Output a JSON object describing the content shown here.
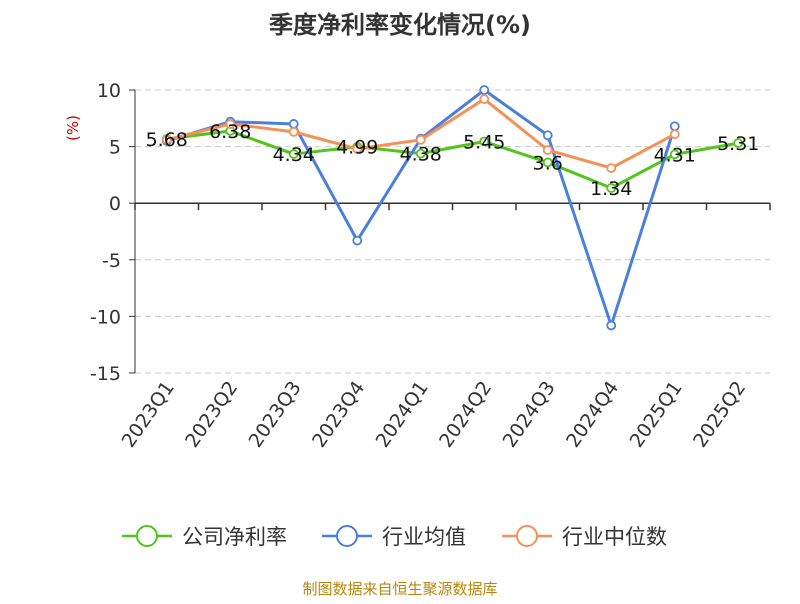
{
  "chart_data": {
    "type": "line",
    "title": "季度净利率变化情况(%)",
    "ylabel": "(%)",
    "xlabel": "",
    "categories": [
      "2023Q1",
      "2023Q2",
      "2023Q3",
      "2023Q4",
      "2024Q1",
      "2024Q2",
      "2024Q3",
      "2024Q4",
      "2025Q1",
      "2025Q2"
    ],
    "ylim": [
      -15,
      10
    ],
    "yticks": [
      "10",
      "5",
      "0",
      "-5",
      "-10",
      "-15"
    ],
    "grid": true,
    "legend_position": "bottom",
    "series": [
      {
        "name": "公司净利率",
        "color": "#52c41a",
        "values": [
          5.68,
          6.38,
          4.34,
          4.99,
          4.38,
          5.45,
          3.6,
          1.34,
          4.31,
          5.31
        ],
        "labels": [
          "5.68",
          "6.38",
          "4.34",
          "4.99",
          "4.38",
          "5.45",
          "3.6",
          "1.34",
          "4.31",
          "5.31"
        ]
      },
      {
        "name": "行业均值",
        "color": "#4a7fdc",
        "values": [
          5.5,
          7.2,
          7.0,
          -3.3,
          5.7,
          10.0,
          6.0,
          -10.8,
          6.8,
          null
        ]
      },
      {
        "name": "行业中位数",
        "color": "#f59058",
        "values": [
          5.6,
          7.0,
          6.3,
          4.8,
          5.6,
          9.2,
          4.7,
          3.1,
          6.1,
          null
        ]
      }
    ]
  },
  "footer": {
    "source": "制图数据来自恒生聚源数据库"
  }
}
